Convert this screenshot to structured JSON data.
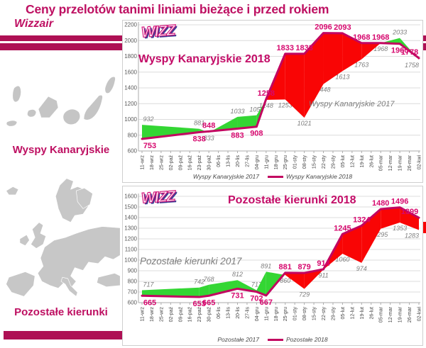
{
  "header": {
    "title": "Ceny przelotów tanimi liniami bieżące i przed rokiem",
    "subtitle": "Wizzair"
  },
  "sidebar": {
    "top_label": "Wyspy Kanaryjskie",
    "bottom_label": "Pozostałe kierunki"
  },
  "colors": {
    "accent": "#BE1062",
    "line_2018": "#C20560",
    "label_2018": "#D6086E",
    "label_2017": "#7E7E7E",
    "fill_red": "#F90505",
    "fill_green": "#33D633",
    "grid": "#DCDCDC",
    "axis_text": "#5A5A5A"
  },
  "chart_data": [
    {
      "type": "area",
      "logo_text": "WIZZ",
      "title_2018": "Wyspy Kanaryjskie 2018",
      "title_2017": "Wyspy Kanaryjskie 2017",
      "ylim": [
        600,
        2200
      ],
      "ytick_step": 200,
      "grid": true,
      "legend_position": "bottom",
      "categories": [
        "11-wrz",
        "18-wrz",
        "25-wrz",
        "02-paź",
        "09-paź",
        "16-paź",
        "23-paź",
        "30-paź",
        "06-lis",
        "13-lis",
        "20-lis",
        "27-lis",
        "04-gru",
        "11-gru",
        "18-gru",
        "25-gru",
        "01-sty",
        "08-sty",
        "15-sty",
        "22-sty",
        "29-sty",
        "05-lut",
        "12-lut",
        "19-lut",
        "26-lut",
        "05-mar",
        "12-mar",
        "19-mar",
        "26-mar",
        "02-kwi"
      ],
      "label_indices": [
        0,
        6,
        7,
        10,
        12,
        13,
        15,
        17,
        19,
        21,
        23,
        25,
        27,
        29
      ],
      "series": [
        {
          "name": "Wyspy Kanaryjskie 2017",
          "values": [
            932,
            881,
            833,
            1033,
            1053,
            1248,
            1253,
            1021,
            1448,
            1613,
            1763,
            1968,
            2033,
            1758
          ]
        },
        {
          "name": "Wyspy Kanaryjskie 2018",
          "values": [
            753,
            838,
            848,
            883,
            908,
            1258,
            1833,
            1833,
            2096,
            2093,
            1968,
            1968,
            1960,
            1778
          ]
        }
      ],
      "legend": [
        "Wyspy Kanaryjskie 2017",
        "Wyspy Kanaryjskie 2018"
      ]
    },
    {
      "type": "area",
      "logo_text": "WIZZ",
      "title_2018": "Pozostałe kierunki 2018",
      "title_2017": "Pozostałe kierunki 2017",
      "ylim": [
        600,
        1600
      ],
      "ytick_step": 100,
      "grid": true,
      "legend_position": "bottom",
      "categories": [
        "11-wrz",
        "18-wrz",
        "25-wrz",
        "02-paź",
        "09-paź",
        "16-paź",
        "23-paź",
        "30-paź",
        "06-lis",
        "13-lis",
        "20-lis",
        "27-lis",
        "04-gru",
        "11-gru",
        "18-gru",
        "25-gru",
        "01-sty",
        "08-sty",
        "15-sty",
        "22-sty",
        "29-sty",
        "05-lut",
        "12-lut",
        "19-lut",
        "26-lut",
        "05-mar",
        "12-mar",
        "19-mar",
        "26-mar",
        "02-kwi"
      ],
      "label_indices": [
        0,
        6,
        7,
        10,
        12,
        13,
        15,
        17,
        19,
        21,
        23,
        25,
        27,
        29
      ],
      "series": [
        {
          "name": "Pozostałe 2017",
          "values": [
            717,
            742,
            768,
            812,
            717,
            891,
            860,
            729,
            911,
            1060,
            974,
            1295,
            1353,
            1283
          ]
        },
        {
          "name": "Pozostałe 2018",
          "values": [
            665,
            653,
            665,
            731,
            702,
            667,
            881,
            879,
            914,
            1245,
            1324,
            1480,
            1496,
            1399
          ]
        }
      ],
      "legend": [
        "Pozostałe 2017",
        "Pozostałe 2018"
      ]
    }
  ]
}
